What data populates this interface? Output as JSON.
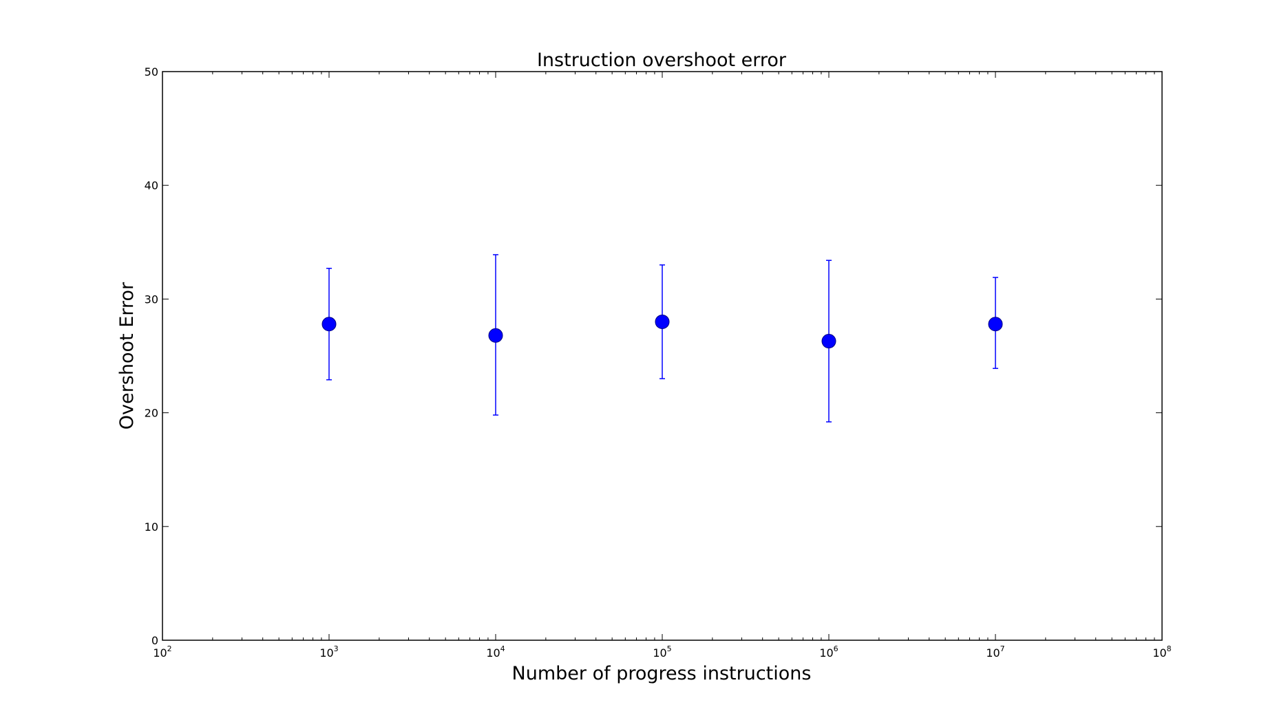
{
  "chart_data": {
    "type": "scatter",
    "title": "Instruction overshoot error",
    "xlabel": "Number of progress instructions",
    "ylabel": "Overshoot Error",
    "xscale": "log",
    "xlim": [
      100,
      100000000
    ],
    "ylim": [
      0,
      50
    ],
    "x_ticks": [
      {
        "value": 100,
        "base": "10",
        "exp": "2"
      },
      {
        "value": 1000,
        "base": "10",
        "exp": "3"
      },
      {
        "value": 10000,
        "base": "10",
        "exp": "4"
      },
      {
        "value": 100000,
        "base": "10",
        "exp": "5"
      },
      {
        "value": 1000000,
        "base": "10",
        "exp": "6"
      },
      {
        "value": 10000000,
        "base": "10",
        "exp": "7"
      },
      {
        "value": 100000000,
        "base": "10",
        "exp": "8"
      }
    ],
    "y_ticks": [
      "0",
      "10",
      "20",
      "30",
      "40",
      "50"
    ],
    "grid": false,
    "legend": "none",
    "series": [
      {
        "color": "#0000ff",
        "marker": "circle",
        "points": [
          {
            "x": 1000,
            "y": 27.8,
            "err_low": 22.9,
            "err_high": 32.7
          },
          {
            "x": 10000,
            "y": 26.8,
            "err_low": 19.8,
            "err_high": 33.9
          },
          {
            "x": 100000,
            "y": 28.0,
            "err_low": 23.0,
            "err_high": 33.0
          },
          {
            "x": 1000000,
            "y": 26.3,
            "err_low": 19.2,
            "err_high": 33.4
          },
          {
            "x": 10000000,
            "y": 27.8,
            "err_low": 23.9,
            "err_high": 31.9
          }
        ]
      }
    ]
  }
}
